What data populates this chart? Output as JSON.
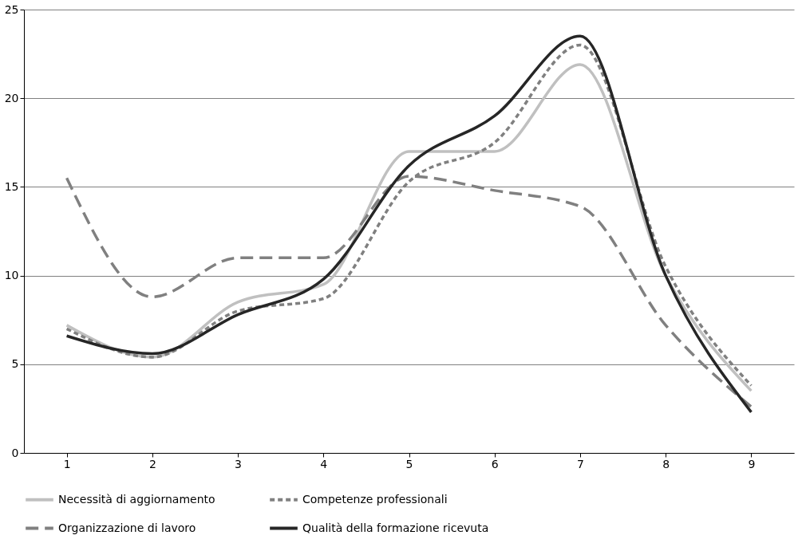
{
  "chart_data": {
    "type": "line",
    "categories": [
      "1",
      "2",
      "3",
      "4",
      "5",
      "6",
      "7",
      "8",
      "9"
    ],
    "ylim": [
      0,
      25
    ],
    "yticks": [
      0,
      5,
      10,
      15,
      20,
      25
    ],
    "grid": "y",
    "legend": "bottom",
    "marker": "none",
    "series": [
      {
        "name": "Necessità di aggiornamento",
        "color": "#c0c0c0",
        "line_style": "solid",
        "values": [
          7.2,
          5.4,
          8.5,
          9.5,
          17.0,
          17.0,
          21.9,
          10.0,
          3.5
        ]
      },
      {
        "name": "Competenze professionali",
        "color": "#808080",
        "line_style": "dotted",
        "values": [
          7.0,
          5.4,
          8.0,
          8.7,
          15.3,
          17.5,
          23.0,
          10.5,
          3.8
        ]
      },
      {
        "name": "Organizzazione di lavoro",
        "color": "#808080",
        "line_style": "dashed",
        "values": [
          15.5,
          8.8,
          11.0,
          11.0,
          15.6,
          14.8,
          13.9,
          7.2,
          2.6
        ]
      },
      {
        "name": "Qualità della formazione ricevuta",
        "color": "#262626",
        "line_style": "solid",
        "values": [
          6.6,
          5.6,
          7.8,
          9.8,
          16.2,
          19.0,
          23.5,
          10.0,
          2.3
        ]
      }
    ]
  }
}
